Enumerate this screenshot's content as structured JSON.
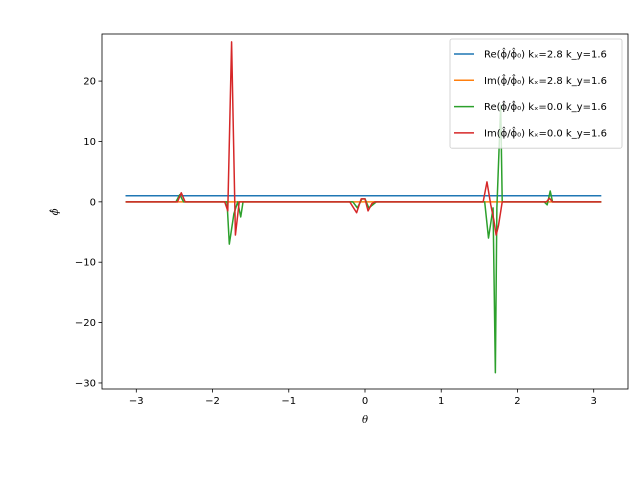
{
  "chart_data": {
    "type": "line",
    "title": "",
    "xlabel": "θ",
    "ylabel": "ϕ̂",
    "xlim": [
      -3.45,
      3.45
    ],
    "ylim": [
      -31.0,
      27.8
    ],
    "xticks": [
      -3,
      -2,
      -1,
      0,
      1,
      2,
      3
    ],
    "xtick_labels": [
      "−3",
      "−2",
      "−1",
      "0",
      "1",
      "2",
      "3"
    ],
    "yticks": [
      -30,
      -20,
      -10,
      0,
      10,
      20
    ],
    "ytick_labels": [
      "−30",
      "−20",
      "−10",
      "0",
      "10",
      "20"
    ],
    "grid": false,
    "legend_position": "top-right",
    "series": [
      {
        "name": "Re(ϕ̂/ϕ̂₀) kₓ=2.8 k_y=1.6",
        "color": "#1f77b4",
        "x": [
          -3.14159,
          3.1
        ],
        "y": [
          1.0,
          1.0
        ]
      },
      {
        "name": "Im(ϕ̂/ϕ̂₀) kₓ=2.8 k_y=1.6",
        "color": "#ff7f0e",
        "x": [
          -3.14159,
          3.1
        ],
        "y": [
          0.0,
          0.0
        ]
      },
      {
        "name": "Re(ϕ̂/ϕ̂₀) kₓ=0.0 k_y=1.6",
        "color": "#2ca02c",
        "x": [
          -3.14,
          -2.48,
          -2.43,
          -2.38,
          -1.81,
          -1.78,
          -1.72,
          -1.67,
          -1.63,
          -1.6,
          -1.57,
          -0.16,
          -0.1,
          -0.04,
          0.0,
          0.05,
          0.1,
          0.15,
          1.57,
          1.62,
          1.68,
          1.71,
          1.73,
          1.78,
          1.8,
          2.35,
          2.39,
          2.43,
          2.46,
          3.1
        ],
        "y": [
          0,
          0,
          1.2,
          0,
          0,
          -7.0,
          -2.0,
          0,
          -2.5,
          0,
          0,
          0,
          -1.0,
          0.5,
          0.5,
          -1.0,
          -0.5,
          0,
          0,
          -6.0,
          -1.0,
          -28.3,
          -1.0,
          16.0,
          0,
          0,
          -0.5,
          1.8,
          0,
          0
        ]
      },
      {
        "name": "Im(ϕ̂/ϕ̂₀) kₓ=0.0 k_y=1.6",
        "color": "#d62728",
        "x": [
          -3.14,
          -2.46,
          -2.41,
          -2.36,
          -1.84,
          -1.8,
          -1.75,
          -1.7,
          -1.65,
          -1.6,
          -0.2,
          -0.11,
          -0.05,
          0.0,
          0.04,
          0.09,
          0.13,
          1.55,
          1.6,
          1.65,
          1.69,
          1.72,
          1.75,
          1.8,
          2.38,
          2.42,
          2.46,
          3.1
        ],
        "y": [
          0,
          0,
          1.5,
          0,
          0,
          -1.5,
          26.5,
          -5.5,
          0,
          0,
          0,
          -1.8,
          0.5,
          0.5,
          -1.5,
          -0.3,
          0,
          0,
          3.3,
          -0.5,
          -3.0,
          -5.5,
          -4.0,
          0,
          0,
          0.6,
          0,
          0
        ]
      }
    ]
  }
}
